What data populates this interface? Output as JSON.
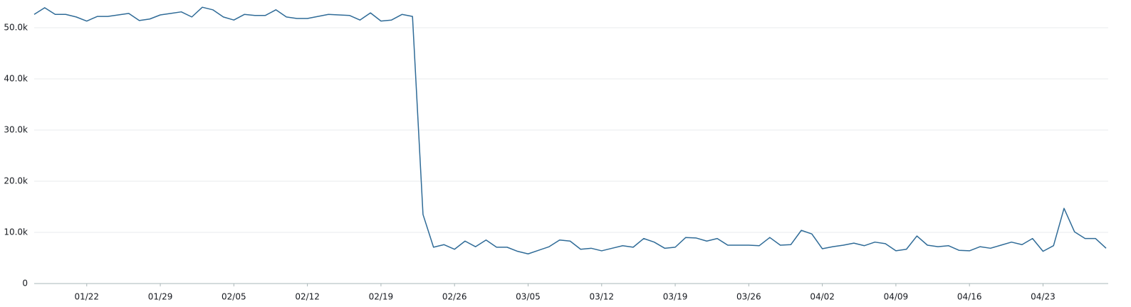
{
  "chart_data": {
    "type": "line",
    "categories": [
      null,
      null,
      null,
      null,
      null,
      "01/22",
      null,
      null,
      null,
      null,
      null,
      null,
      "01/29",
      null,
      null,
      null,
      null,
      null,
      null,
      "02/05",
      null,
      null,
      null,
      null,
      null,
      null,
      "02/12",
      null,
      null,
      null,
      null,
      null,
      null,
      "02/19",
      null,
      null,
      null,
      null,
      null,
      null,
      "02/26",
      null,
      null,
      null,
      null,
      null,
      null,
      "03/05",
      null,
      null,
      null,
      null,
      null,
      null,
      "03/12",
      null,
      null,
      null,
      null,
      null,
      null,
      "03/19",
      null,
      null,
      null,
      null,
      null,
      null,
      "03/26",
      null,
      null,
      null,
      null,
      null,
      null,
      "04/02",
      null,
      null,
      null,
      null,
      null,
      null,
      "04/09",
      null,
      null,
      null,
      null,
      null,
      null,
      "04/16",
      null,
      null,
      null,
      null,
      null,
      null,
      "04/23",
      null,
      null,
      null,
      null,
      null,
      null
    ],
    "series": [
      {
        "color": "#2f6b97",
        "values": [
          52600,
          53900,
          52600,
          52600,
          52100,
          51300,
          52200,
          52200,
          52500,
          52800,
          51400,
          51700,
          52500,
          52800,
          53100,
          52100,
          54000,
          53500,
          52100,
          51500,
          52600,
          52400,
          52400,
          53500,
          52100,
          51800,
          51800,
          52200,
          52600,
          52500,
          52400,
          51500,
          52900,
          51300,
          51500,
          52600,
          52200,
          13500,
          7100,
          7600,
          6700,
          8300,
          7200,
          8500,
          7100,
          7100,
          6300,
          5800,
          6500,
          7200,
          8500,
          8300,
          6700,
          6900,
          6400,
          6900,
          7400,
          7100,
          8800,
          8100,
          6900,
          7100,
          9000,
          8900,
          8300,
          8800,
          7500,
          7500,
          7500,
          7400,
          9000,
          7500,
          7600,
          10400,
          9700,
          6800,
          7200,
          7500,
          7900,
          7400,
          8100,
          7800,
          6400,
          6700,
          9300,
          7500,
          7200,
          7400,
          6500,
          6400,
          7200,
          6900,
          7500,
          8100,
          7600,
          8800,
          6300,
          7400,
          14700,
          10100,
          8800,
          8800,
          6900
        ]
      }
    ],
    "ylim": [
      0,
      55000
    ],
    "yticks": [
      0,
      {
        "value": 10000,
        "label": "10.0k"
      },
      {
        "value": 20000,
        "label": "20.0k"
      },
      {
        "value": 30000,
        "label": "30.0k"
      },
      {
        "value": 40000,
        "label": "40.0k"
      },
      {
        "value": 50000,
        "label": "50.0k"
      }
    ],
    "grid": true
  }
}
